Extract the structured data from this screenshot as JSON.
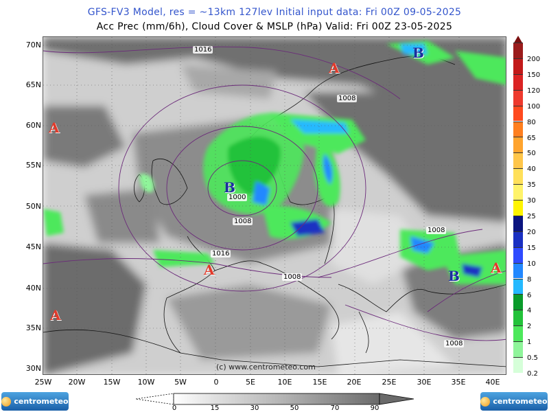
{
  "header": {
    "line1": "GFS-FV3 Model, res = ~13km 127lev    Initial input data: Fri 00Z 09-05-2025",
    "line2": "Acc Prec (mm/6h), Cloud Cover & MSLP (hPa)  Valid: Fri 00Z 23-05-2025"
  },
  "axes": {
    "lat_labels": [
      "70N",
      "65N",
      "60N",
      "55N",
      "50N",
      "45N",
      "40N",
      "35N",
      "30N"
    ],
    "lon_labels": [
      "25W",
      "20W",
      "15W",
      "10W",
      "5W",
      "0",
      "5E",
      "10E",
      "15E",
      "20E",
      "25E",
      "30E",
      "35E",
      "40E"
    ]
  },
  "precip_colorbar": {
    "labels": [
      "200",
      "150",
      "120",
      "100",
      "80",
      "65",
      "50",
      "40",
      "35",
      "30",
      "25",
      "20",
      "15",
      "10",
      "8",
      "6",
      "4",
      "2",
      "1",
      "0.5",
      "0.2"
    ],
    "colors": [
      "#9b1c1c",
      "#c21a1a",
      "#db2424",
      "#ee3a2e",
      "#ff4a1f",
      "#ff7f1f",
      "#ffa42e",
      "#ffc64a",
      "#ffe05a",
      "#fff36a",
      "#fff400",
      "#0b1580",
      "#1a30c2",
      "#2f4bff",
      "#2288ff",
      "#25b9ff",
      "#0a9b2b",
      "#23c23a",
      "#4de85b",
      "#8ff59a",
      "#d6ffd9"
    ]
  },
  "cloud_colorbar": {
    "labels": [
      "0",
      "15",
      "30",
      "50",
      "70",
      "90"
    ]
  },
  "pressure_systems": [
    {
      "type": "high",
      "label": "A"
    },
    {
      "type": "high",
      "label": "A"
    },
    {
      "type": "high",
      "label": "A"
    },
    {
      "type": "high",
      "label": "A"
    },
    {
      "type": "high",
      "label": "A"
    },
    {
      "type": "low",
      "label": "B"
    },
    {
      "type": "low",
      "label": "B"
    },
    {
      "type": "low",
      "label": "B"
    }
  ],
  "isobar_labels": [
    "1016",
    "1008",
    "1000",
    "1008",
    "1016",
    "1008",
    "1008",
    "1008"
  ],
  "copyright": "(c) www.centrometeo.com",
  "logos": {
    "left": "centrometeo",
    "right": "centrometeo"
  },
  "icons": {
    "logo": "sun-logo-icon"
  }
}
